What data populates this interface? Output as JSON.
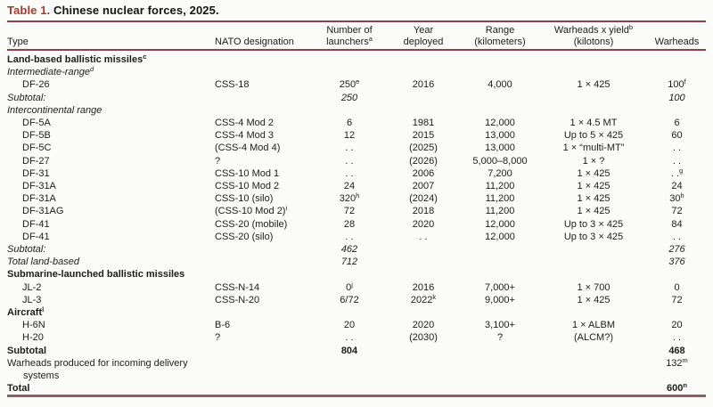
{
  "title": {
    "label": "Table 1.",
    "caption": " Chinese nuclear forces, 2025."
  },
  "colors": {
    "accent_red": "#a33a2e",
    "rule_maroon": "#8e4149",
    "bottom_rule": "#8d6068",
    "text": "#1c1c1c",
    "background": "#fbfbf9"
  },
  "table": {
    "columns": [
      {
        "key": "type",
        "align": "left",
        "header_lines": [
          "Type"
        ]
      },
      {
        "key": "nato",
        "align": "left",
        "header_lines": [
          "NATO designation"
        ]
      },
      {
        "key": "launchers",
        "align": "center",
        "header_lines": [
          "Number of",
          "launchers^a"
        ]
      },
      {
        "key": "year",
        "align": "center",
        "header_lines": [
          "Year",
          "deployed"
        ]
      },
      {
        "key": "range",
        "align": "center",
        "header_lines": [
          "Range",
          "(kilometers)"
        ]
      },
      {
        "key": "yield",
        "align": "center",
        "header_lines": [
          "Warheads x yield^b",
          "(kilotons)"
        ]
      },
      {
        "key": "warheads",
        "align": "center",
        "header_lines": [
          "Warheads"
        ]
      }
    ],
    "rows": [
      {
        "style": "section",
        "cells": [
          "Land-based ballistic missiles^c",
          "",
          "",
          "",
          "",
          "",
          ""
        ]
      },
      {
        "style": "italic",
        "cells": [
          "Intermediate-range^d",
          "",
          "",
          "",
          "",
          "",
          ""
        ]
      },
      {
        "style": "item",
        "cells": [
          "DF-26",
          "CSS-18",
          "250^e",
          "2016",
          "4,000",
          "1 × 425",
          "100^f"
        ]
      },
      {
        "style": "italic",
        "cells": [
          "Subtotal:",
          "",
          "250",
          "",
          "",
          "",
          "100"
        ]
      },
      {
        "style": "italic",
        "cells": [
          "Intercontinental range",
          "",
          "",
          "",
          "",
          "",
          ""
        ]
      },
      {
        "style": "item",
        "cells": [
          "DF-5A",
          "CSS-4 Mod 2",
          "6",
          "1981",
          "12,000",
          "1 × 4.5 MT",
          "6"
        ]
      },
      {
        "style": "item",
        "cells": [
          "DF-5B",
          "CSS-4 Mod 3",
          "12",
          "2015",
          "13,000",
          "Up to 5 × 425",
          "60"
        ]
      },
      {
        "style": "item",
        "cells": [
          "DF-5C",
          "(CSS-4 Mod 4)",
          ". .",
          "(2025)",
          "13,000",
          "1 × “multi-MT”",
          ". ."
        ]
      },
      {
        "style": "item",
        "cells": [
          "DF-27",
          "?",
          ". .",
          "(2026)",
          "5,000–8,000",
          "1 × ?",
          ". ."
        ]
      },
      {
        "style": "item",
        "cells": [
          "DF-31",
          "CSS-10 Mod 1",
          ". .",
          "2006",
          "7,200",
          "1 × 425",
          ". .^g"
        ]
      },
      {
        "style": "item",
        "cells": [
          "DF-31A",
          "CSS-10 Mod 2",
          "24",
          "2007",
          "11,200",
          "1 × 425",
          "24"
        ]
      },
      {
        "style": "item",
        "cells": [
          "DF-31A",
          "CSS-10 (silo)",
          "320^h",
          "(2024)",
          "11,200",
          "1 × 425",
          "30^h"
        ]
      },
      {
        "style": "item",
        "cells": [
          "DF-31AG",
          "(CSS-10 Mod 2)^i",
          "72",
          "2018",
          "11,200",
          "1 × 425",
          "72"
        ]
      },
      {
        "style": "item",
        "cells": [
          "DF-41",
          "CSS-20 (mobile)",
          "28",
          "2020",
          "12,000",
          "Up to 3 × 425",
          "84"
        ]
      },
      {
        "style": "item",
        "cells": [
          "DF-41",
          "CSS-20 (silo)",
          ". .",
          ". .",
          "12,000",
          "Up to 3 × 425",
          ". ."
        ]
      },
      {
        "style": "italic",
        "cells": [
          "Subtotal:",
          "",
          "462",
          "",
          "",
          "",
          "276"
        ]
      },
      {
        "style": "italic",
        "cells": [
          "Total land-based",
          "",
          "712",
          "",
          "",
          "",
          "376"
        ]
      },
      {
        "style": "section",
        "cells": [
          "Submarine-launched ballistic missiles",
          "",
          "",
          "",
          "",
          "",
          ""
        ]
      },
      {
        "style": "item",
        "cells": [
          "JL-2",
          "CSS-N-14",
          "0^j",
          "2016",
          "7,000+",
          "1 × 700",
          "0"
        ]
      },
      {
        "style": "item",
        "cells": [
          "JL-3",
          "CSS-N-20",
          "6/72",
          "2022^k",
          "9,000+",
          "1 × 425",
          "72"
        ]
      },
      {
        "style": "section",
        "cells": [
          "Aircraft^l",
          "",
          "",
          "",
          "",
          "",
          ""
        ]
      },
      {
        "style": "item",
        "cells": [
          "H-6N",
          "B-6",
          "20",
          "2020",
          "3,100+",
          "1 × ALBM",
          "20"
        ]
      },
      {
        "style": "item",
        "cells": [
          "H-20",
          "?",
          ". .",
          "(2030)",
          "?",
          "(ALCM?)",
          ". ."
        ]
      },
      {
        "style": "section",
        "cells": [
          "Subtotal",
          "",
          "804",
          "",
          "",
          "",
          "468"
        ]
      },
      {
        "style": "plain-hang",
        "cells": [
          "Warheads produced for incoming delivery systems",
          "",
          "",
          "",
          "",
          "",
          "132^m"
        ]
      },
      {
        "style": "section",
        "cells": [
          "Total",
          "",
          "",
          "",
          "",
          "",
          "600^n"
        ]
      }
    ]
  }
}
